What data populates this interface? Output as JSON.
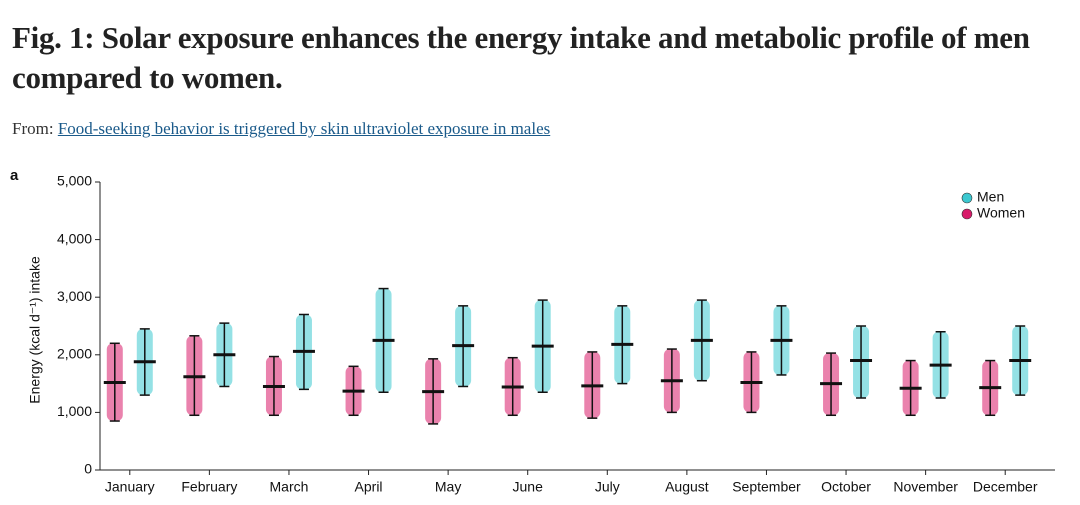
{
  "header": {
    "title": "Fig. 1: Solar exposure enhances the energy intake and metabolic profile of men compared to women.",
    "from_label": "From:",
    "link": "Food-seeking behavior is triggered by skin ultraviolet exposure in males"
  },
  "panel_label": "a",
  "chart_data": {
    "type": "dot-errorbar",
    "y_label": "Energy (kcal d⁻¹) intake",
    "categories": [
      "January",
      "February",
      "March",
      "April",
      "May",
      "June",
      "July",
      "August",
      "September",
      "October",
      "November",
      "December"
    ],
    "series": [
      {
        "name": "Men",
        "color": "#3cc8d0",
        "values": [
          1880,
          2000,
          2060,
          2250,
          2160,
          2150,
          2180,
          2250,
          2250,
          1900,
          1820,
          1900
        ],
        "low": [
          1300,
          1450,
          1400,
          1350,
          1450,
          1350,
          1500,
          1550,
          1650,
          1250,
          1250,
          1300
        ],
        "high": [
          2450,
          2550,
          2700,
          3150,
          2850,
          2950,
          2850,
          2950,
          2850,
          2500,
          2400,
          2500
        ]
      },
      {
        "name": "Women",
        "color": "#d81b6a",
        "values": [
          1520,
          1620,
          1450,
          1370,
          1360,
          1440,
          1460,
          1550,
          1520,
          1500,
          1420,
          1430
        ],
        "low": [
          850,
          950,
          950,
          950,
          800,
          950,
          900,
          1000,
          1000,
          950,
          950,
          950
        ],
        "high": [
          2200,
          2330,
          1970,
          1800,
          1930,
          1950,
          2050,
          2100,
          2050,
          2030,
          1900,
          1900
        ]
      }
    ],
    "ylim": [
      0,
      5000
    ],
    "yticks": [
      0,
      {
        "value": 1000,
        "label": "1,000"
      },
      {
        "value": 2000,
        "label": "2,000"
      },
      {
        "value": 3000,
        "label": "3,000"
      },
      {
        "value": 4000,
        "label": "4,000"
      },
      {
        "value": 5000,
        "label": "5,000"
      }
    ],
    "legend": "top-right"
  }
}
